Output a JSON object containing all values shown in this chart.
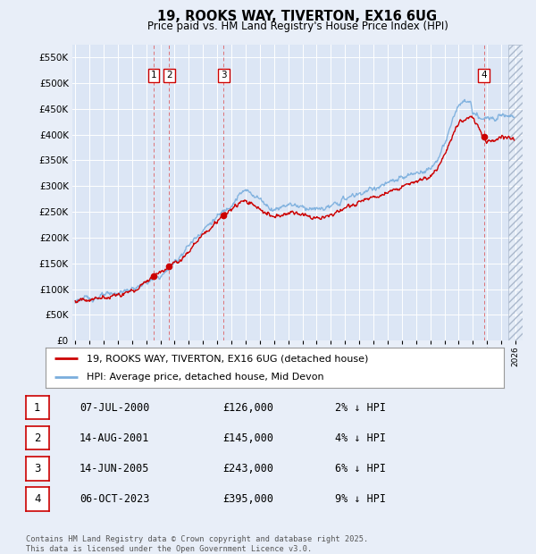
{
  "title": "19, ROOKS WAY, TIVERTON, EX16 6UG",
  "subtitle": "Price paid vs. HM Land Registry's House Price Index (HPI)",
  "ylim": [
    0,
    575000
  ],
  "yticks": [
    0,
    50000,
    100000,
    150000,
    200000,
    250000,
    300000,
    350000,
    400000,
    450000,
    500000,
    550000
  ],
  "xlim_start": 1994.8,
  "xlim_end": 2026.5,
  "bg_color": "#e8eef8",
  "plot_bg": "#dce6f5",
  "grid_color": "#ffffff",
  "sale_dates": [
    2000.52,
    2001.62,
    2005.46,
    2023.77
  ],
  "sale_prices": [
    126000,
    145000,
    243000,
    395000
  ],
  "sale_labels": [
    "1",
    "2",
    "3",
    "4"
  ],
  "hpi_line_color": "#7aaedd",
  "price_line_color": "#cc0000",
  "legend_entries": [
    "19, ROOKS WAY, TIVERTON, EX16 6UG (detached house)",
    "HPI: Average price, detached house, Mid Devon"
  ],
  "table_rows": [
    {
      "num": "1",
      "date": "07-JUL-2000",
      "price": "£126,000",
      "pct": "2% ↓ HPI"
    },
    {
      "num": "2",
      "date": "14-AUG-2001",
      "price": "£145,000",
      "pct": "4% ↓ HPI"
    },
    {
      "num": "3",
      "date": "14-JUN-2005",
      "price": "£243,000",
      "pct": "6% ↓ HPI"
    },
    {
      "num": "4",
      "date": "06-OCT-2023",
      "price": "£395,000",
      "pct": "9% ↓ HPI"
    }
  ],
  "footnote": "Contains HM Land Registry data © Crown copyright and database right 2025.\nThis data is licensed under the Open Government Licence v3.0."
}
